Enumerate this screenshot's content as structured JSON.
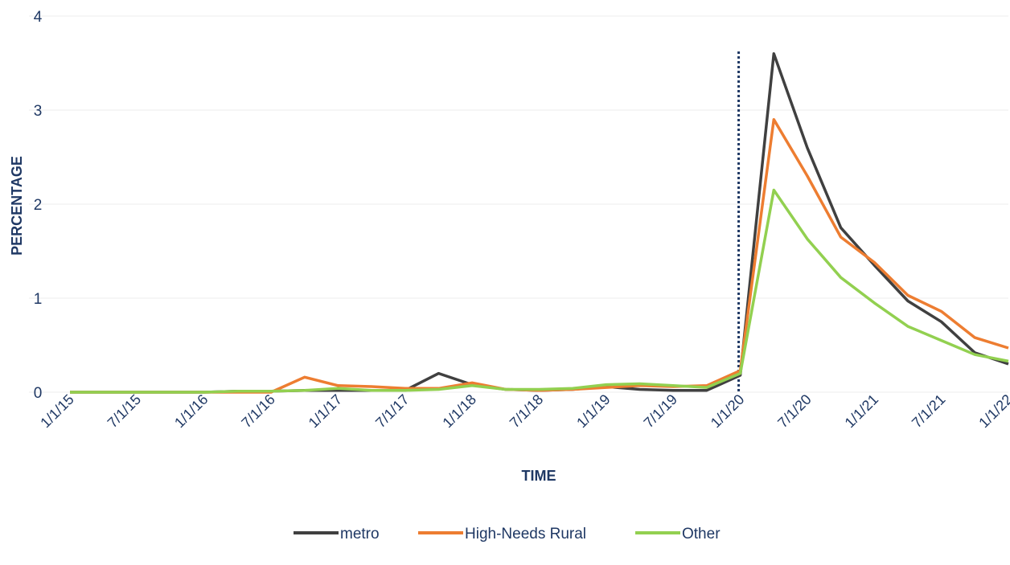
{
  "chart_data": {
    "type": "line",
    "title": "",
    "xlabel": "TIME",
    "ylabel": "PERCENTAGE",
    "ylim": [
      0,
      4
    ],
    "yticks": [
      "0",
      "1",
      "2",
      "3",
      "4"
    ],
    "x_tick_labels": [
      "1/1/15",
      "7/1/15",
      "1/1/16",
      "7/1/16",
      "1/1/17",
      "7/1/17",
      "1/1/18",
      "7/1/18",
      "1/1/19",
      "7/1/19",
      "1/1/20",
      "7/1/20",
      "1/1/21",
      "7/1/21",
      "1/1/22"
    ],
    "x": [
      "1/1/15",
      "4/1/15",
      "7/1/15",
      "10/1/15",
      "1/1/16",
      "4/1/16",
      "7/1/16",
      "10/1/16",
      "1/1/17",
      "4/1/17",
      "7/1/17",
      "10/1/17",
      "1/1/18",
      "4/1/18",
      "7/1/18",
      "10/1/18",
      "1/1/19",
      "4/1/19",
      "7/1/19",
      "10/1/19",
      "1/1/20",
      "4/1/20",
      "7/1/20",
      "10/1/20",
      "1/1/21",
      "4/1/21",
      "7/1/21",
      "10/1/21",
      "1/1/22"
    ],
    "reference_line_x": "1/1/20",
    "grid": true,
    "legend_position": "bottom",
    "series": [
      {
        "name": "metro",
        "color": "#404040",
        "values": [
          0.0,
          0.0,
          0.0,
          0.0,
          0.0,
          0.01,
          0.01,
          0.02,
          0.02,
          0.02,
          0.02,
          0.2,
          0.08,
          0.03,
          0.02,
          0.03,
          0.06,
          0.03,
          0.02,
          0.02,
          0.18,
          3.6,
          2.6,
          1.75,
          1.35,
          0.97,
          0.75,
          0.42,
          0.3
        ]
      },
      {
        "name": "High-Needs Rural",
        "color": "#ed7d31",
        "values": [
          0.0,
          0.0,
          0.0,
          0.0,
          0.0,
          0.0,
          0.0,
          0.16,
          0.07,
          0.06,
          0.04,
          0.04,
          0.1,
          0.03,
          0.02,
          0.03,
          0.05,
          0.07,
          0.06,
          0.07,
          0.23,
          2.9,
          2.3,
          1.65,
          1.38,
          1.03,
          0.86,
          0.58,
          0.47
        ]
      },
      {
        "name": "Other",
        "color": "#92d050",
        "values": [
          0.0,
          0.0,
          0.0,
          0.0,
          0.0,
          0.01,
          0.01,
          0.02,
          0.04,
          0.02,
          0.02,
          0.03,
          0.07,
          0.03,
          0.03,
          0.04,
          0.08,
          0.09,
          0.07,
          0.05,
          0.2,
          2.15,
          1.63,
          1.22,
          0.95,
          0.7,
          0.55,
          0.4,
          0.33
        ]
      }
    ]
  }
}
